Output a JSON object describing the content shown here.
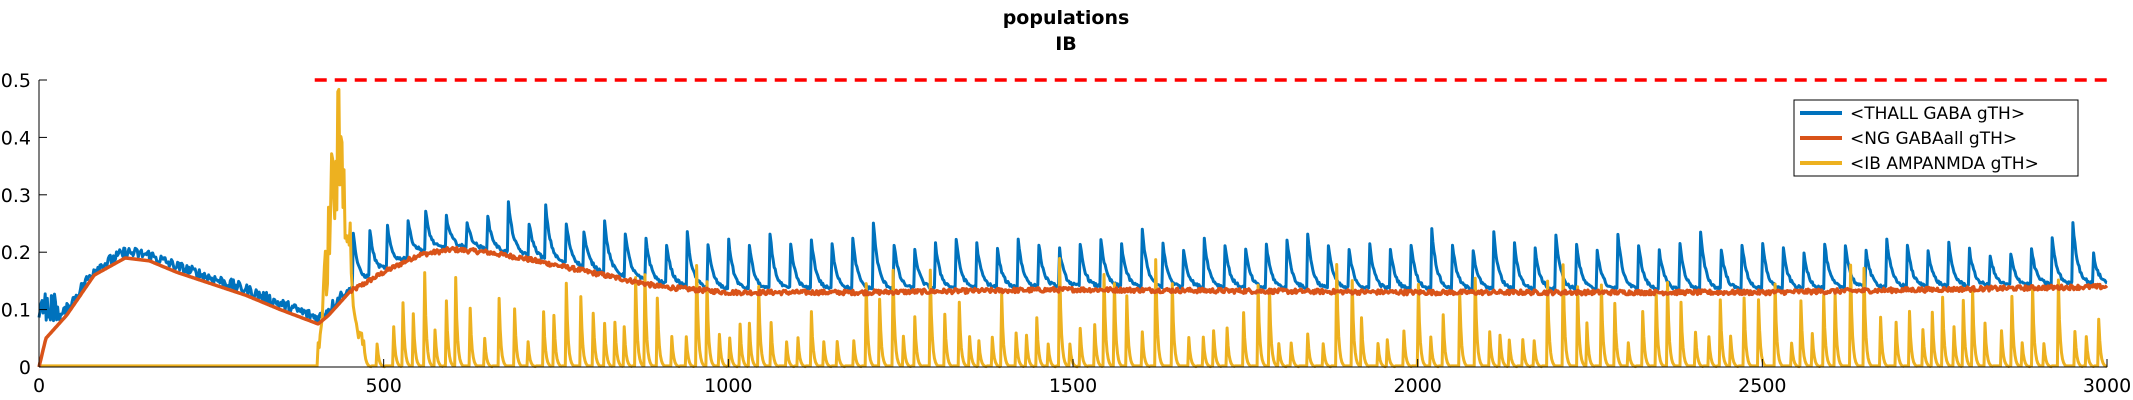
{
  "chart_data": {
    "type": "line",
    "title": "populations",
    "subtitle": "IB",
    "xlabel": "",
    "ylabel": "",
    "xlim": [
      0,
      3000
    ],
    "ylim": [
      0,
      0.5
    ],
    "xticks": [
      0,
      500,
      1000,
      1500,
      2000,
      2500,
      3000
    ],
    "yticks": [
      0,
      0.1,
      0.2,
      0.3,
      0.4,
      0.5
    ],
    "xtick_labels": [
      "0",
      "500",
      "1000",
      "1500",
      "2000",
      "2500",
      "3000"
    ],
    "ytick_labels": [
      "0",
      "0.1",
      "0.2",
      "0.3",
      "0.4",
      "0.5"
    ],
    "grid": false,
    "legend_position": "top-right",
    "threshold": {
      "y": 0.5,
      "x_start": 400,
      "x_end": 3000,
      "style": "dashed",
      "color": "#ff0000"
    },
    "series": [
      {
        "name": "<THALL GABA gTH>",
        "color": "#0072bd",
        "description_points": [
          [
            0,
            0.12
          ],
          [
            20,
            0.08
          ],
          [
            60,
            0.13
          ],
          [
            100,
            0.19
          ],
          [
            150,
            0.19
          ],
          [
            200,
            0.16
          ],
          [
            300,
            0.12
          ],
          [
            400,
            0.09
          ],
          [
            430,
            0.13
          ],
          [
            450,
            0.25
          ],
          [
            480,
            0.15
          ],
          [
            600,
            0.27
          ],
          [
            680,
            0.3
          ],
          [
            800,
            0.25
          ],
          [
            1000,
            0.23
          ],
          [
            1200,
            0.26
          ],
          [
            1500,
            0.22
          ],
          [
            2000,
            0.22
          ],
          [
            2500,
            0.2
          ],
          [
            2950,
            0.26
          ],
          [
            3000,
            0.15
          ]
        ],
        "spike_peaks": [
          [
            455,
            0.25
          ],
          [
            480,
            0.24
          ],
          [
            505,
            0.25
          ],
          [
            535,
            0.26
          ],
          [
            560,
            0.28
          ],
          [
            590,
            0.27
          ],
          [
            620,
            0.26
          ],
          [
            650,
            0.27
          ],
          [
            680,
            0.3
          ],
          [
            710,
            0.26
          ],
          [
            735,
            0.28
          ],
          [
            765,
            0.25
          ],
          [
            790,
            0.24
          ],
          [
            820,
            0.26
          ],
          [
            850,
            0.24
          ],
          [
            880,
            0.23
          ],
          [
            910,
            0.22
          ],
          [
            940,
            0.24
          ],
          [
            970,
            0.22
          ],
          [
            1000,
            0.23
          ],
          [
            1030,
            0.22
          ],
          [
            1060,
            0.24
          ],
          [
            1090,
            0.22
          ],
          [
            1120,
            0.23
          ],
          [
            1150,
            0.22
          ],
          [
            1180,
            0.23
          ],
          [
            1210,
            0.26
          ],
          [
            1240,
            0.22
          ],
          [
            1270,
            0.21
          ],
          [
            1300,
            0.22
          ],
          [
            1330,
            0.23
          ],
          [
            1360,
            0.22
          ],
          [
            1390,
            0.21
          ],
          [
            1420,
            0.23
          ],
          [
            1450,
            0.22
          ],
          [
            1480,
            0.21
          ],
          [
            1510,
            0.22
          ],
          [
            1540,
            0.23
          ],
          [
            1570,
            0.22
          ],
          [
            1600,
            0.25
          ],
          [
            1630,
            0.22
          ],
          [
            1660,
            0.21
          ],
          [
            1690,
            0.23
          ],
          [
            1720,
            0.22
          ],
          [
            1750,
            0.21
          ],
          [
            1780,
            0.22
          ],
          [
            1810,
            0.23
          ],
          [
            1840,
            0.24
          ],
          [
            1870,
            0.22
          ],
          [
            1900,
            0.21
          ],
          [
            1930,
            0.22
          ],
          [
            1960,
            0.21
          ],
          [
            1990,
            0.22
          ],
          [
            2020,
            0.25
          ],
          [
            2050,
            0.22
          ],
          [
            2080,
            0.21
          ],
          [
            2110,
            0.24
          ],
          [
            2140,
            0.22
          ],
          [
            2170,
            0.21
          ],
          [
            2200,
            0.24
          ],
          [
            2230,
            0.22
          ],
          [
            2260,
            0.21
          ],
          [
            2290,
            0.24
          ],
          [
            2320,
            0.22
          ],
          [
            2350,
            0.21
          ],
          [
            2380,
            0.22
          ],
          [
            2410,
            0.24
          ],
          [
            2440,
            0.21
          ],
          [
            2470,
            0.22
          ],
          [
            2500,
            0.22
          ],
          [
            2530,
            0.21
          ],
          [
            2560,
            0.2
          ],
          [
            2590,
            0.22
          ],
          [
            2620,
            0.22
          ],
          [
            2650,
            0.21
          ],
          [
            2680,
            0.23
          ],
          [
            2710,
            0.22
          ],
          [
            2740,
            0.21
          ],
          [
            2770,
            0.22
          ],
          [
            2800,
            0.21
          ],
          [
            2830,
            0.2
          ],
          [
            2860,
            0.2
          ],
          [
            2890,
            0.21
          ],
          [
            2920,
            0.23
          ],
          [
            2950,
            0.26
          ],
          [
            2980,
            0.2
          ]
        ],
        "baseline_between_spikes": 0.14
      },
      {
        "name": "<NG GABAall gTH>",
        "color": "#d95319",
        "description_points": [
          [
            0,
            0.0
          ],
          [
            10,
            0.05
          ],
          [
            40,
            0.09
          ],
          [
            80,
            0.16
          ],
          [
            125,
            0.19
          ],
          [
            160,
            0.185
          ],
          [
            200,
            0.165
          ],
          [
            250,
            0.145
          ],
          [
            300,
            0.125
          ],
          [
            350,
            0.1
          ],
          [
            405,
            0.075
          ],
          [
            420,
            0.09
          ],
          [
            450,
            0.13
          ],
          [
            500,
            0.165
          ],
          [
            550,
            0.195
          ],
          [
            600,
            0.205
          ],
          [
            650,
            0.2
          ],
          [
            700,
            0.19
          ],
          [
            800,
            0.165
          ],
          [
            900,
            0.14
          ],
          [
            1000,
            0.13
          ],
          [
            1200,
            0.13
          ],
          [
            1500,
            0.135
          ],
          [
            2000,
            0.13
          ],
          [
            2500,
            0.13
          ],
          [
            3000,
            0.14
          ]
        ]
      },
      {
        "name": "<IB AMPANMDA gTH>",
        "color": "#edb120",
        "description_points": [
          [
            0,
            0.0
          ],
          [
            400,
            0.0
          ],
          [
            410,
            0.1
          ],
          [
            425,
            0.4
          ],
          [
            435,
            0.5
          ],
          [
            445,
            0.42
          ],
          [
            460,
            0.08
          ],
          [
            500,
            0.0
          ],
          [
            3000,
            0.0
          ]
        ],
        "spike_range_after_500": [
          0.04,
          0.19
        ],
        "spike_interval_approx": 18
      }
    ]
  },
  "legend": {
    "items": [
      {
        "label": "<THALL GABA gTH>",
        "color": "#0072bd"
      },
      {
        "label": "<NG GABAall gTH>",
        "color": "#d95319"
      },
      {
        "label": "<IB AMPANMDA gTH>",
        "color": "#edb120"
      }
    ]
  }
}
